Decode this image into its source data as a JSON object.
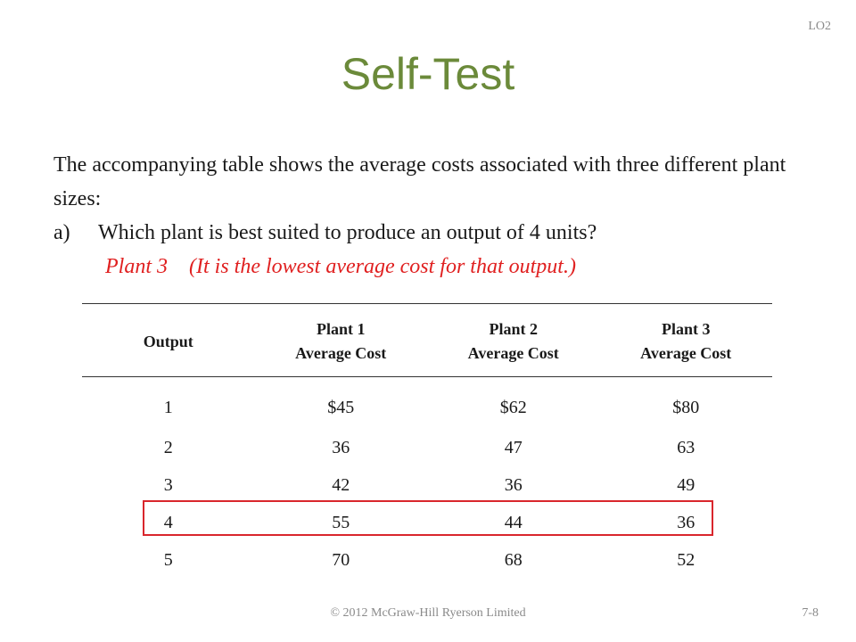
{
  "slide": {
    "lo_tag": "LO2",
    "title": "Self-Test",
    "intro": "The accompanying table shows the average costs associated with three different plant sizes:",
    "question_label": "a)",
    "question": "Which plant is best suited to produce an output of 4 units?",
    "answer": "Plant 3    (It is the lowest average cost for that output.)",
    "footer": "© 2012 McGraw-Hill Ryerson Limited",
    "page_number": "7-8",
    "highlight_color": "#d9262c",
    "title_color": "#6b8a3a",
    "answer_color": "#e02020"
  },
  "table": {
    "headers": [
      {
        "line1": "Output",
        "line2": ""
      },
      {
        "line1": "Plant 1",
        "line2": "Average Cost"
      },
      {
        "line1": "Plant 2",
        "line2": "Average Cost"
      },
      {
        "line1": "Plant 3",
        "line2": "Average Cost"
      }
    ],
    "rows": [
      [
        "1",
        "$45",
        "$62",
        "$80"
      ],
      [
        "2",
        "36",
        "47",
        "63"
      ],
      [
        "3",
        "42",
        "36",
        "49"
      ],
      [
        "4",
        "55",
        "44",
        "36"
      ],
      [
        "5",
        "70",
        "68",
        "52"
      ]
    ],
    "highlighted_row": "4"
  }
}
